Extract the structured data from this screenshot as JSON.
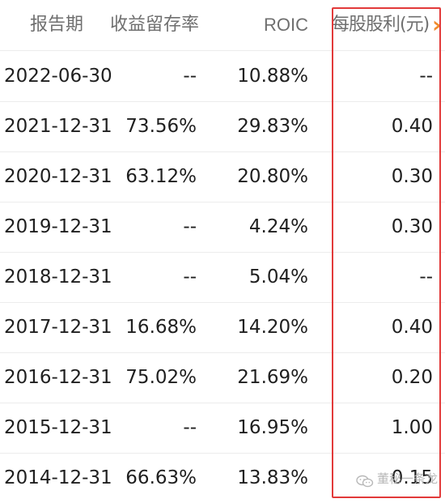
{
  "header": {
    "col_date": "报告期",
    "col_retention": "收益留存率",
    "col_roic": "ROIC",
    "col_dividend": "每股股利(元)",
    "more_icon": "chevron-right-icon"
  },
  "rows": [
    {
      "date": "2022-06-30",
      "retention": "--",
      "roic": "10.88%",
      "dividend": "--"
    },
    {
      "date": "2021-12-31",
      "retention": "73.56%",
      "roic": "29.83%",
      "dividend": "0.40"
    },
    {
      "date": "2020-12-31",
      "retention": "63.12%",
      "roic": "20.80%",
      "dividend": "0.30"
    },
    {
      "date": "2019-12-31",
      "retention": "--",
      "roic": "4.24%",
      "dividend": "0.30"
    },
    {
      "date": "2018-12-31",
      "retention": "--",
      "roic": "5.04%",
      "dividend": "--"
    },
    {
      "date": "2017-12-31",
      "retention": "16.68%",
      "roic": "14.20%",
      "dividend": "0.40"
    },
    {
      "date": "2016-12-31",
      "retention": "75.02%",
      "roic": "21.69%",
      "dividend": "0.20"
    },
    {
      "date": "2015-12-31",
      "retention": "--",
      "roic": "16.95%",
      "dividend": "1.00"
    },
    {
      "date": "2014-12-31",
      "retention": "66.63%",
      "roic": "13.83%",
      "dividend": "0.15"
    }
  ],
  "watermark": {
    "text": "董秘一条龙",
    "icon": "wechat-icon"
  },
  "colors": {
    "highlight_border": "#e23a3a",
    "arrow": "#f08a2c",
    "header_text": "#6f6f6f"
  }
}
